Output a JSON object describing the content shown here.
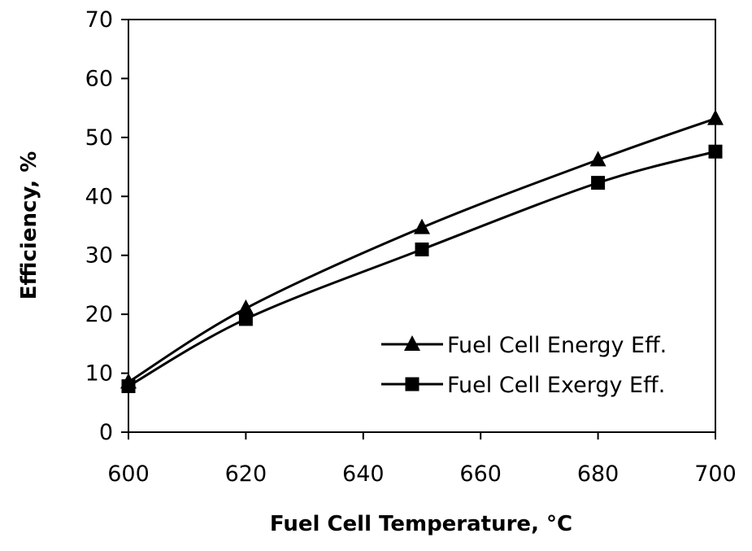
{
  "chart_data": {
    "type": "line",
    "title": "",
    "xlabel": "Fuel Cell Temperature, °C",
    "ylabel": "Efficiency, %",
    "xlim": [
      600,
      700
    ],
    "ylim": [
      0,
      70
    ],
    "xticks": [
      600,
      620,
      640,
      660,
      680,
      700
    ],
    "yticks": [
      0,
      10,
      20,
      30,
      40,
      50,
      60,
      70
    ],
    "grid": false,
    "legend_position": "lower-right",
    "x": [
      600,
      620,
      650,
      680,
      700
    ],
    "series": [
      {
        "name": "Fuel Cell Energy Eff.",
        "marker": "triangle",
        "values": [
          8.5,
          21.0,
          34.7,
          46.2,
          53.2
        ]
      },
      {
        "name": "Fuel Cell Exergy Eff.",
        "marker": "square",
        "values": [
          7.8,
          19.2,
          31.0,
          42.3,
          47.6
        ]
      }
    ]
  },
  "colors": {
    "line": "#000000",
    "background": "#ffffff"
  }
}
